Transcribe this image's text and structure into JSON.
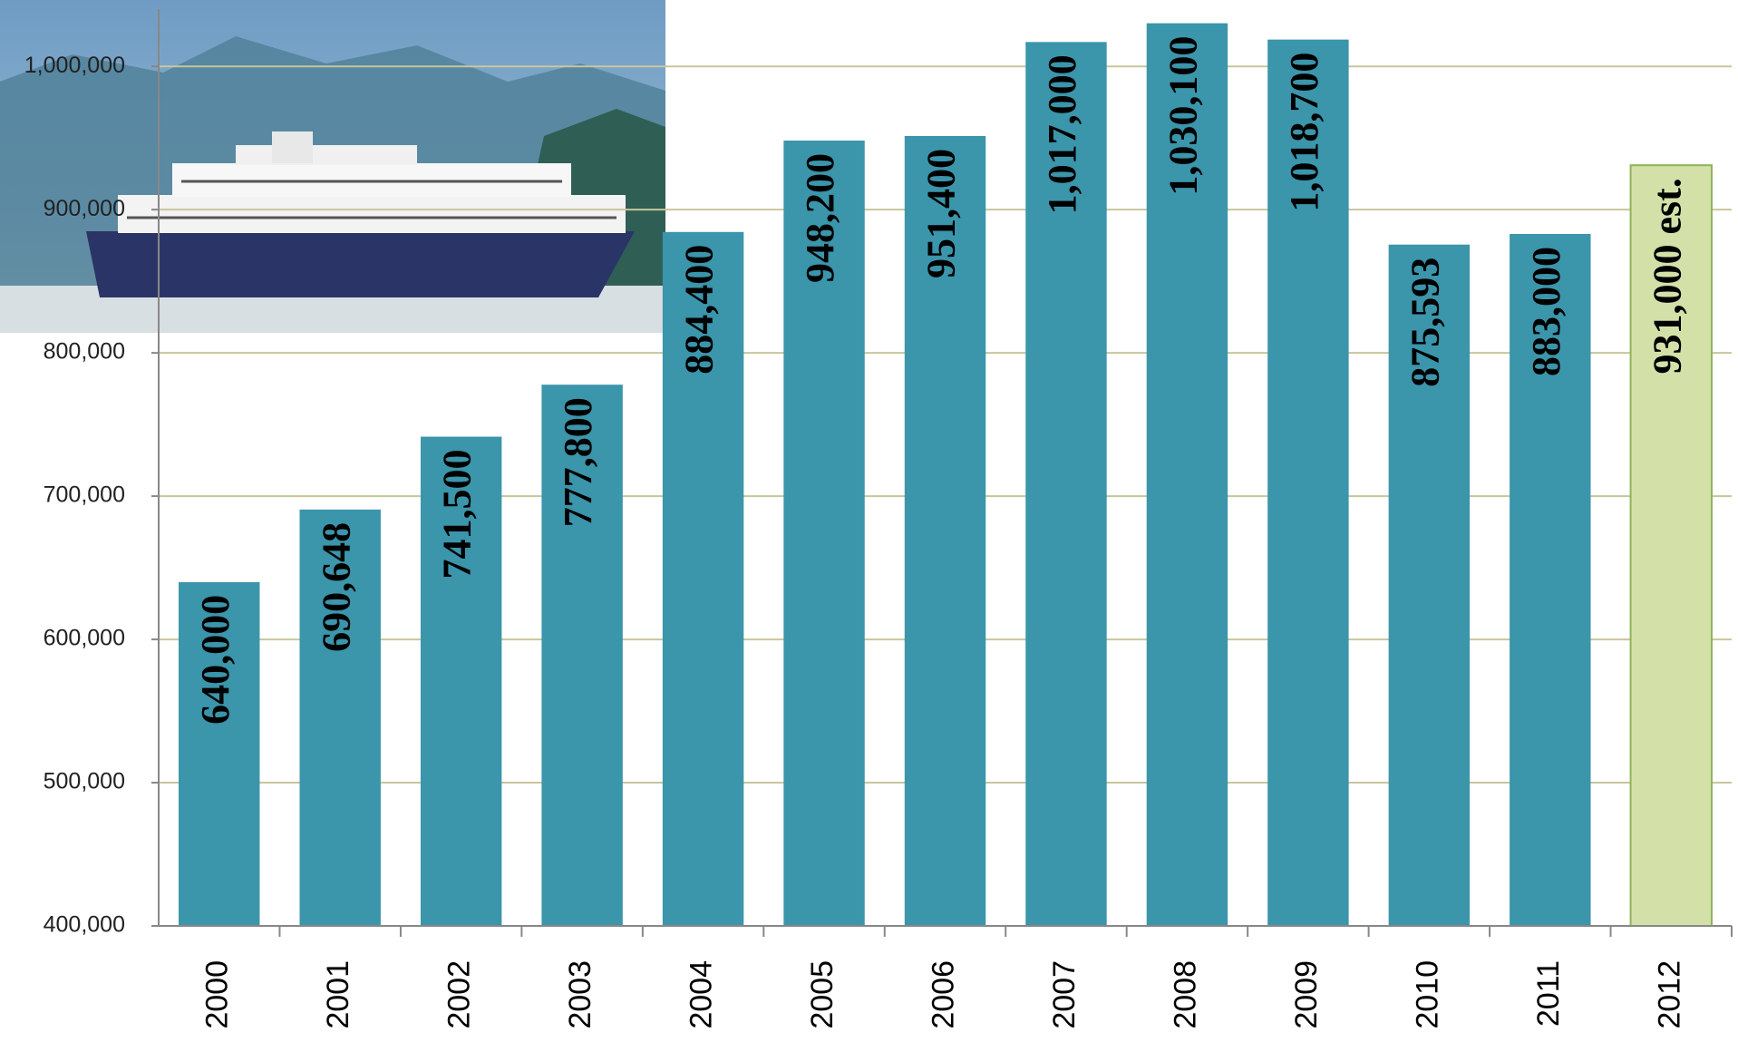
{
  "chart_data": {
    "type": "bar",
    "categories": [
      "2000",
      "2001",
      "2002",
      "2003",
      "2004",
      "2005",
      "2006",
      "2007",
      "2008",
      "2009",
      "2010",
      "2011",
      "2012"
    ],
    "values": [
      640000,
      690648,
      741500,
      777800,
      884400,
      948200,
      951400,
      1017000,
      1030100,
      1018700,
      875593,
      883000,
      931000
    ],
    "value_labels": [
      "640,000",
      "690,648",
      "741,500",
      "777,800",
      "884,400",
      "948,200",
      "951,400",
      "1,017,000",
      "1,030,100",
      "1,018,700",
      "875,593",
      "883,000",
      "931,000 est."
    ],
    "colors": [
      "#3b95ab",
      "#3b95ab",
      "#3b95ab",
      "#3b95ab",
      "#3b95ab",
      "#3b95ab",
      "#3b95ab",
      "#3b95ab",
      "#3b95ab",
      "#3b95ab",
      "#3b95ab",
      "#3b95ab",
      "#d3e1a9"
    ],
    "ylim": [
      400000,
      1040000
    ],
    "yticks": [
      {
        "value": 400000,
        "label": "400,000"
      },
      {
        "value": 500000,
        "label": "500,000"
      },
      {
        "value": 600000,
        "label": "600,000"
      },
      {
        "value": 700000,
        "label": "700,000"
      },
      {
        "value": 800000,
        "label": "800,000"
      },
      {
        "value": 900000,
        "label": "900,000"
      },
      {
        "value": 1000000,
        "label": "1,000,000"
      }
    ],
    "grid": true
  }
}
